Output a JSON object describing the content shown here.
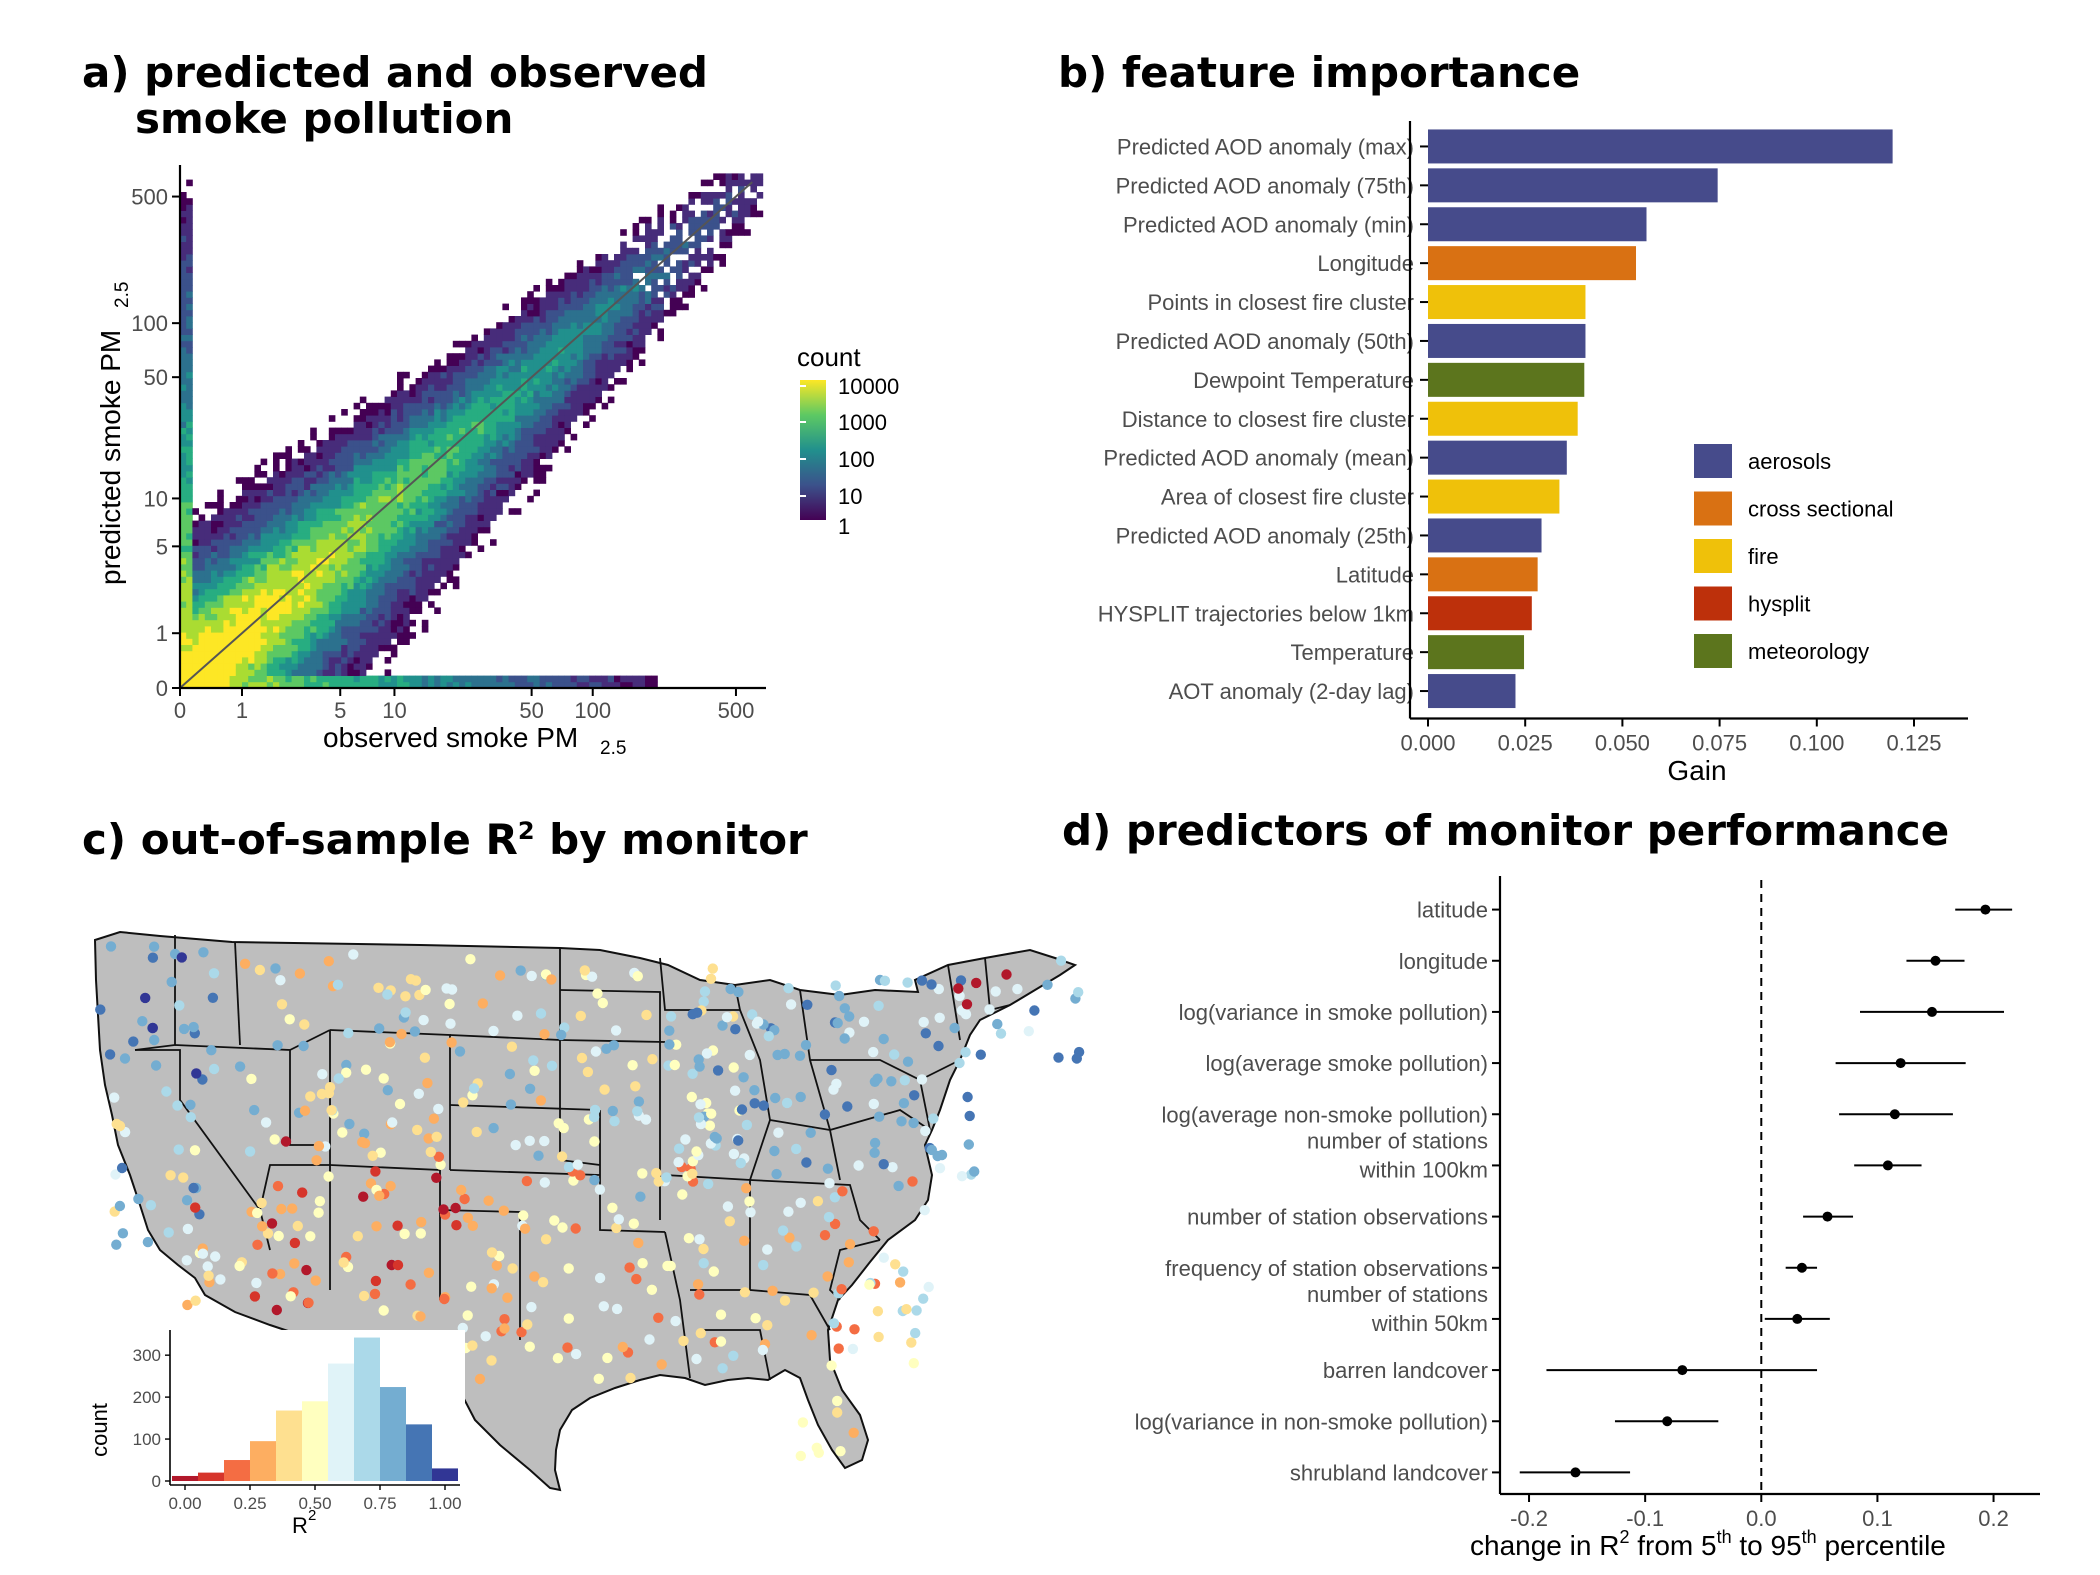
{
  "titles": {
    "a_line1": "a) predicted and observed",
    "a_line2": "smoke pollution",
    "b": "b) feature importance",
    "c_pre": "c) out-of-sample R",
    "c_sup": "2",
    "c_post": " by monitor",
    "d": "d) predictors of monitor performance"
  },
  "colors": {
    "aerosols": "#464b8b",
    "cross sectional": "#d97113",
    "fire": "#efc10a",
    "hysplit": "#bd300b",
    "meteorology": "#5c751d"
  },
  "chart_data": [
    {
      "panel": "a",
      "type": "heatmap",
      "xlabel_main": "observed smoke PM",
      "xlabel_sub": "2.5",
      "ylabel_main": "predicted smoke PM",
      "ylabel_sub": "2.5",
      "x_ticks": [
        "0",
        "1",
        "5",
        "10",
        "50",
        "100",
        "500"
      ],
      "y_ticks": [
        "0",
        "1",
        "5",
        "10",
        "50",
        "100",
        "500"
      ],
      "scale": "pseudo-log",
      "legend_title": "count",
      "legend_ticks": [
        "10000",
        "1000",
        "100",
        "10",
        "1"
      ],
      "colormap": "viridis",
      "reference_line": "1:1"
    },
    {
      "panel": "b",
      "type": "bar",
      "orientation": "horizontal",
      "xlabel": "Gain",
      "x_ticks": [
        "0.000",
        "0.025",
        "0.050",
        "0.075",
        "0.100",
        "0.125"
      ],
      "xlim": [
        0,
        0.125
      ],
      "bars": [
        {
          "label": "Predicted AOD anomaly (max)",
          "value": 0.1195,
          "group": "aerosols"
        },
        {
          "label": "Predicted AOD anomaly (75th)",
          "value": 0.0745,
          "group": "aerosols"
        },
        {
          "label": "Predicted AOD anomaly (min)",
          "value": 0.0562,
          "group": "aerosols"
        },
        {
          "label": "Longitude",
          "value": 0.0535,
          "group": "cross sectional"
        },
        {
          "label": "Points in closest fire cluster",
          "value": 0.0405,
          "group": "fire"
        },
        {
          "label": "Predicted AOD anomaly (50th)",
          "value": 0.0405,
          "group": "aerosols"
        },
        {
          "label": "Dewpoint Temperature",
          "value": 0.0402,
          "group": "meteorology"
        },
        {
          "label": "Distance to closest fire cluster",
          "value": 0.0385,
          "group": "fire"
        },
        {
          "label": "Predicted AOD anomaly (mean)",
          "value": 0.0357,
          "group": "aerosols"
        },
        {
          "label": "Area of closest fire cluster",
          "value": 0.0338,
          "group": "fire"
        },
        {
          "label": "Predicted AOD anomaly (25th)",
          "value": 0.0292,
          "group": "aerosols"
        },
        {
          "label": "Latitude",
          "value": 0.0282,
          "group": "cross sectional"
        },
        {
          "label": "HYSPLIT trajectories below 1km",
          "value": 0.0267,
          "group": "hysplit"
        },
        {
          "label": "Temperature",
          "value": 0.0247,
          "group": "meteorology"
        },
        {
          "label": "AOT anomaly (2-day lag)",
          "value": 0.0225,
          "group": "aerosols"
        }
      ],
      "legend": [
        "aerosols",
        "cross sectional",
        "fire",
        "hysplit",
        "meteorology"
      ],
      "legend_position": "bottom-right"
    },
    {
      "panel": "c",
      "type": "bar",
      "subtype": "histogram",
      "xlabel_main": "R",
      "xlabel_sup": "2",
      "ylabel": "count",
      "x_ticks": [
        "0.00",
        "0.25",
        "0.50",
        "0.75",
        "1.00"
      ],
      "y_ticks": [
        "0",
        "100",
        "200",
        "300"
      ],
      "ylim": [
        0,
        360
      ],
      "bins": [
        {
          "start": 0.0,
          "end": 0.1,
          "count": 12,
          "color": "#b2182b"
        },
        {
          "start": 0.1,
          "end": 0.2,
          "count": 20,
          "color": "#d6352b"
        },
        {
          "start": 0.2,
          "end": 0.3,
          "count": 50,
          "color": "#f46d43"
        },
        {
          "start": 0.3,
          "end": 0.4,
          "count": 95,
          "color": "#fdae61"
        },
        {
          "start": 0.4,
          "end": 0.5,
          "count": 168,
          "color": "#fee090"
        },
        {
          "start": 0.5,
          "end": 0.6,
          "count": 190,
          "color": "#ffffbf"
        },
        {
          "start": 0.6,
          "end": 0.7,
          "count": 280,
          "color": "#e0f3f8"
        },
        {
          "start": 0.7,
          "end": 0.8,
          "count": 342,
          "color": "#abd9e9"
        },
        {
          "start": 0.8,
          "end": 0.9,
          "count": 224,
          "color": "#74add1"
        },
        {
          "start": 0.9,
          "end": 1.0,
          "count": 135,
          "color": "#4575b4"
        },
        {
          "start": 1.0,
          "end": 1.1,
          "count": 30,
          "color": "#313695"
        }
      ]
    },
    {
      "panel": "d",
      "type": "scatter",
      "subtype": "coefficient-plot",
      "xlabel_parts": [
        "change in R",
        "2",
        " from 5",
        "th",
        " to 95",
        "th",
        " percentile"
      ],
      "x_ticks": [
        "-0.2",
        "-0.1",
        "0.0",
        "0.1",
        "0.2"
      ],
      "x_tick_values": [
        -0.2,
        -0.1,
        0.0,
        0.1,
        0.2
      ],
      "xlim": [
        -0.225,
        0.24
      ],
      "reference_line_x": 0.0,
      "points": [
        {
          "label": [
            "latitude"
          ],
          "estimate": 0.193,
          "low": 0.167,
          "high": 0.216
        },
        {
          "label": [
            "longitude"
          ],
          "estimate": 0.15,
          "low": 0.125,
          "high": 0.175
        },
        {
          "label": [
            "log(variance in smoke pollution)"
          ],
          "estimate": 0.147,
          "low": 0.085,
          "high": 0.209
        },
        {
          "label": [
            "log(average smoke pollution)"
          ],
          "estimate": 0.12,
          "low": 0.064,
          "high": 0.176
        },
        {
          "label": [
            "log(average non-smoke pollution)"
          ],
          "estimate": 0.115,
          "low": 0.067,
          "high": 0.165
        },
        {
          "label": [
            "number of stations",
            "within 100km"
          ],
          "estimate": 0.109,
          "low": 0.08,
          "high": 0.138
        },
        {
          "label": [
            "number of station observations"
          ],
          "estimate": 0.057,
          "low": 0.036,
          "high": 0.079
        },
        {
          "label": [
            "frequency of station observations"
          ],
          "estimate": 0.035,
          "low": 0.021,
          "high": 0.048
        },
        {
          "label": [
            "number of stations",
            "within 50km"
          ],
          "estimate": 0.031,
          "low": 0.003,
          "high": 0.059
        },
        {
          "label": [
            "barren landcover"
          ],
          "estimate": -0.068,
          "low": -0.185,
          "high": 0.048
        },
        {
          "label": [
            "log(variance in non-smoke pollution)"
          ],
          "estimate": -0.081,
          "low": -0.126,
          "high": -0.037
        },
        {
          "label": [
            "shrubland landcover"
          ],
          "estimate": -0.16,
          "low": -0.208,
          "high": -0.113
        }
      ]
    }
  ]
}
